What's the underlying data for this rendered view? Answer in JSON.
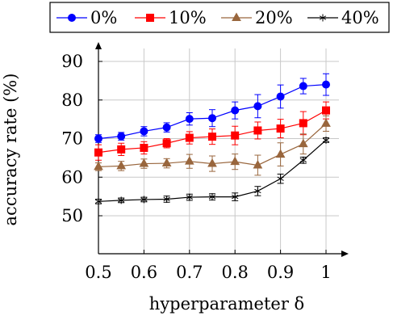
{
  "chart_data": {
    "type": "line",
    "xlabel": "hyperparameter δ",
    "ylabel": "accuracy rate (%)",
    "xlim": [
      0.5,
      1.0
    ],
    "ylim": [
      40,
      95
    ],
    "x_ticks": [
      "0.5",
      "0.6",
      "0.7",
      "0.8",
      "0.9",
      "1"
    ],
    "y_ticks": [
      "50",
      "60",
      "70",
      "80",
      "90"
    ],
    "grid": true,
    "legend_placement": "top",
    "x": [
      0.5,
      0.55,
      0.6,
      0.65,
      0.7,
      0.75,
      0.8,
      0.85,
      0.9,
      0.95,
      1.0
    ],
    "series": [
      {
        "name": "0%",
        "color": "#0000ff",
        "marker": "circle",
        "values": [
          70.0,
          70.6,
          71.9,
          72.9,
          75.1,
          75.3,
          77.3,
          78.4,
          80.9,
          83.6,
          84.0
        ],
        "errors": [
          1.0,
          1.0,
          1.2,
          1.2,
          1.6,
          2.2,
          2.2,
          3.0,
          3.0,
          2.0,
          2.8
        ]
      },
      {
        "name": "10%",
        "color": "#ff0000",
        "marker": "square",
        "values": [
          66.4,
          67.2,
          67.6,
          68.8,
          70.2,
          70.5,
          70.8,
          72.1,
          72.6,
          74.0,
          77.3
        ],
        "errors": [
          2.0,
          1.6,
          1.6,
          1.2,
          1.6,
          2.0,
          2.4,
          2.2,
          2.4,
          3.0,
          2.2
        ]
      },
      {
        "name": "20%",
        "color": "#99663d",
        "marker": "triangle",
        "values": [
          62.7,
          62.9,
          63.5,
          63.6,
          64.1,
          63.5,
          64.0,
          63.1,
          65.9,
          68.6,
          73.9
        ],
        "errors": [
          1.0,
          1.2,
          1.2,
          1.2,
          1.8,
          2.0,
          2.0,
          2.6,
          3.0,
          2.6,
          2.0
        ]
      },
      {
        "name": "40%",
        "color": "#000000",
        "marker": "star",
        "values": [
          53.7,
          54.0,
          54.2,
          54.3,
          54.8,
          54.9,
          54.9,
          56.4,
          59.6,
          64.4,
          69.6
        ],
        "errors": [
          0.6,
          0.6,
          0.6,
          0.8,
          0.8,
          0.8,
          1.0,
          1.2,
          1.2,
          0.8,
          0.6
        ]
      }
    ]
  }
}
